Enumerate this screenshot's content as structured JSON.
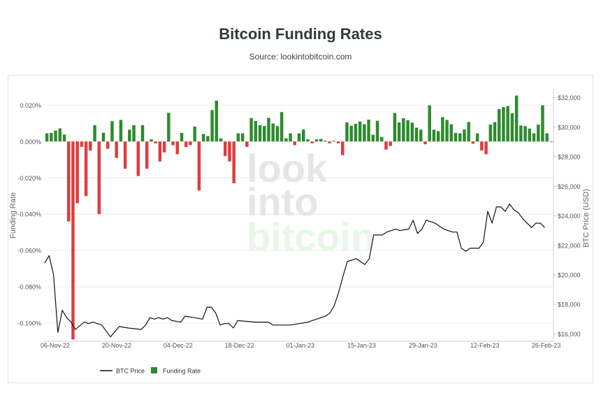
{
  "header": {
    "title": "Bitcoin Funding Rates",
    "subtitle": "Source: lookintobitcoin.com"
  },
  "watermark": [
    "look",
    "into",
    "bitcoin"
  ],
  "colors": {
    "positive_bar": "#2e8b2e",
    "negative_bar": "#e03c3c",
    "price_line": "#111111",
    "grid": "#ececec",
    "watermark_gray": "#e6e6e6",
    "watermark_green": "#e8f7e8"
  },
  "chart_data": {
    "type": "bar",
    "x_axis": {
      "ticks": [
        "06-Nov-22",
        "20-Nov-22",
        "04-Dec-22",
        "18-Dec-22",
        "01-Jan-23",
        "15-Jan-23",
        "29-Jan-23",
        "12-Feb-23",
        "26-Feb-23"
      ]
    },
    "y_left": {
      "label": "Funding Rate",
      "range": [
        -0.11,
        0.029
      ],
      "ticks": [
        "0.020%",
        "0.000%",
        "-0.020%",
        "-0.040%",
        "-0.060%",
        "-0.080%",
        "-0.100%"
      ],
      "tick_values": [
        0.02,
        0,
        -0.02,
        -0.04,
        -0.06,
        -0.08,
        -0.1
      ]
    },
    "y_right": {
      "label": "BTC Price (USD)",
      "range": [
        15500,
        32600
      ],
      "ticks": [
        "$16,000",
        "$18,000",
        "$20,000",
        "$22,000",
        "$24,000",
        "$26,000",
        "$28,000",
        "$30,000",
        "$32,000"
      ],
      "tick_values": [
        16000,
        18000,
        20000,
        22000,
        24000,
        26000,
        28000,
        30000,
        32000
      ]
    },
    "legend": {
      "position": "bottom-left",
      "items": [
        "BTC Price",
        "Funding Rate"
      ]
    },
    "grid": true,
    "series": [
      {
        "name": "Funding Rate",
        "type": "bar",
        "values": [
          0.0045,
          0.0047,
          0.006,
          0.0072,
          0.0038,
          -0.044,
          -0.109,
          -0.034,
          -0.003,
          -0.03,
          -0.005,
          0.009,
          -0.04,
          0.0048,
          -0.004,
          0.0112,
          -0.009,
          0.0119,
          -0.015,
          0.0065,
          0.009,
          -0.019,
          0.009,
          -0.015,
          0.0012,
          -0.001,
          -0.011,
          -0.006,
          0.0158,
          -0.002,
          -0.007,
          0.0047,
          -0.003,
          -0.002,
          0.0082,
          -0.027,
          0.0041,
          0.003,
          0.0173,
          0.0225,
          0.0017,
          -0.008,
          -0.011,
          -0.023,
          0.0045,
          0.0045,
          -0.003,
          0.0129,
          0.0113,
          0.009,
          0.0085,
          0.013,
          0.0099,
          0.0085,
          0.0162,
          0.0018,
          0.0045,
          -0.002,
          0.0045,
          0.0066,
          0.0012,
          -0.001,
          0.0012,
          0.0014,
          0.0005,
          -0.001,
          0.0004,
          -0.001,
          -0.0075,
          0.0105,
          0.0087,
          0.0097,
          0.011,
          0.0095,
          0.012,
          0.0037,
          0.0114,
          0.0025,
          -0.0045,
          -0.0025,
          0.0157,
          0.0105,
          0.0128,
          0.0117,
          0.0104,
          0.0076,
          0.0065,
          -0.0015,
          0.0199,
          0.0065,
          0.0057,
          0.0134,
          0.0119,
          0.0095,
          0.0047,
          0.0045,
          0.0066,
          0.0107,
          -0.0012,
          0.0045,
          -0.005,
          -0.007,
          0.0093,
          0.0107,
          0.0178,
          0.0189,
          0.0195,
          0.0155,
          0.0253,
          0.0088,
          0.0085,
          0.0071,
          0.0045,
          0.0093,
          0.0199,
          0.0045,
          -0.0003
        ]
      },
      {
        "name": "BTC Price",
        "type": "line",
        "points": [
          [
            "2022-11-06",
            20800
          ],
          [
            "2022-11-07",
            21300
          ],
          [
            "2022-11-08",
            20000
          ],
          [
            "2022-11-09",
            16100
          ],
          [
            "2022-11-10",
            17600
          ],
          [
            "2022-11-11",
            17100
          ],
          [
            "2022-11-12",
            16800
          ],
          [
            "2022-11-13",
            16300
          ],
          [
            "2022-11-15",
            16800
          ],
          [
            "2022-11-16",
            16700
          ],
          [
            "2022-11-17",
            16800
          ],
          [
            "2022-11-18",
            16700
          ],
          [
            "2022-11-19",
            16600
          ],
          [
            "2022-11-21",
            15800
          ],
          [
            "2022-11-23",
            16500
          ],
          [
            "2022-11-25",
            16400
          ],
          [
            "2022-11-28",
            16300
          ],
          [
            "2022-11-29",
            16600
          ],
          [
            "2022-11-30",
            17100
          ],
          [
            "2022-12-01",
            17000
          ],
          [
            "2022-12-02",
            17100
          ],
          [
            "2022-12-03",
            17000
          ],
          [
            "2022-12-04",
            17100
          ],
          [
            "2022-12-05",
            16900
          ],
          [
            "2022-12-07",
            16800
          ],
          [
            "2022-12-08",
            17200
          ],
          [
            "2022-12-10",
            17100
          ],
          [
            "2022-12-12",
            17000
          ],
          [
            "2022-12-13",
            17800
          ],
          [
            "2022-12-14",
            17800
          ],
          [
            "2022-12-15",
            17400
          ],
          [
            "2022-12-16",
            16600
          ],
          [
            "2022-12-17",
            16700
          ],
          [
            "2022-12-18",
            16700
          ],
          [
            "2022-12-19",
            16400
          ],
          [
            "2022-12-20",
            16900
          ],
          [
            "2022-12-24",
            16800
          ],
          [
            "2022-12-27",
            16800
          ],
          [
            "2022-12-28",
            16600
          ],
          [
            "2022-12-30",
            16600
          ],
          [
            "2023-01-01",
            16600
          ],
          [
            "2023-01-03",
            16700
          ],
          [
            "2023-01-05",
            16800
          ],
          [
            "2023-01-06",
            16900
          ],
          [
            "2023-01-08",
            17100
          ],
          [
            "2023-01-09",
            17200
          ],
          [
            "2023-01-10",
            17400
          ],
          [
            "2023-01-11",
            17900
          ],
          [
            "2023-01-12",
            18800
          ],
          [
            "2023-01-13",
            19900
          ],
          [
            "2023-01-14",
            20900
          ],
          [
            "2023-01-16",
            21100
          ],
          [
            "2023-01-18",
            20700
          ],
          [
            "2023-01-19",
            21100
          ],
          [
            "2023-01-20",
            22700
          ],
          [
            "2023-01-22",
            22700
          ],
          [
            "2023-01-23",
            22900
          ],
          [
            "2023-01-25",
            23100
          ],
          [
            "2023-01-26",
            23000
          ],
          [
            "2023-01-28",
            23100
          ],
          [
            "2023-01-29",
            23700
          ],
          [
            "2023-01-30",
            22800
          ],
          [
            "2023-01-31",
            23100
          ],
          [
            "2023-02-01",
            23700
          ],
          [
            "2023-02-03",
            23500
          ],
          [
            "2023-02-05",
            23100
          ],
          [
            "2023-02-07",
            22900
          ],
          [
            "2023-02-08",
            22900
          ],
          [
            "2023-02-09",
            21800
          ],
          [
            "2023-02-10",
            21600
          ],
          [
            "2023-02-11",
            21800
          ],
          [
            "2023-02-13",
            21800
          ],
          [
            "2023-02-14",
            22200
          ],
          [
            "2023-02-15",
            24300
          ],
          [
            "2023-02-16",
            23500
          ],
          [
            "2023-02-17",
            24600
          ],
          [
            "2023-02-18",
            24600
          ],
          [
            "2023-02-19",
            24300
          ],
          [
            "2023-02-20",
            24800
          ],
          [
            "2023-02-21",
            24400
          ],
          [
            "2023-02-22",
            24200
          ],
          [
            "2023-02-23",
            23800
          ],
          [
            "2023-02-25",
            23200
          ],
          [
            "2023-02-26",
            23500
          ],
          [
            "2023-02-27",
            23500
          ],
          [
            "2023-02-28",
            23200
          ]
        ]
      }
    ]
  }
}
